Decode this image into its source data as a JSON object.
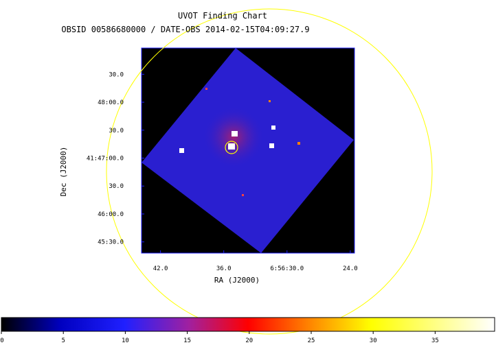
{
  "chart_data": {
    "type": "image",
    "title": "UVOT Finding Chart",
    "subtitle": "OBSID 00586680000 / DATE-OBS 2014-02-15T04:09:27.9",
    "x_label": "RA (J2000)",
    "y_label": "Dec (J2000)",
    "xlim": [
      43.8,
      23.6
    ],
    "xticks": [
      {
        "value": 42,
        "label": "42.0"
      },
      {
        "value": 36,
        "label": "36.0"
      },
      {
        "value": 30,
        "label": "6:56:30.0"
      },
      {
        "value": 24,
        "label": "24.0"
      }
    ],
    "ylim": [
      45.3,
      48.97
    ],
    "yticks": [
      {
        "value": 48.5,
        "label": "30.0"
      },
      {
        "value": 48.0,
        "label": "48:00.0"
      },
      {
        "value": 47.5,
        "label": "30.0"
      },
      {
        "value": 47.0,
        "label": "41:47:00.0"
      },
      {
        "value": 46.5,
        "label": "30.0"
      },
      {
        "value": 46.0,
        "label": "46:00.0"
      },
      {
        "value": 45.5,
        "label": "45:30.0"
      }
    ],
    "colorbar_lim": [
      0,
      39.8
    ],
    "colorbar_ticks": [
      0,
      5,
      10,
      15,
      20,
      25,
      30,
      35
    ]
  }
}
